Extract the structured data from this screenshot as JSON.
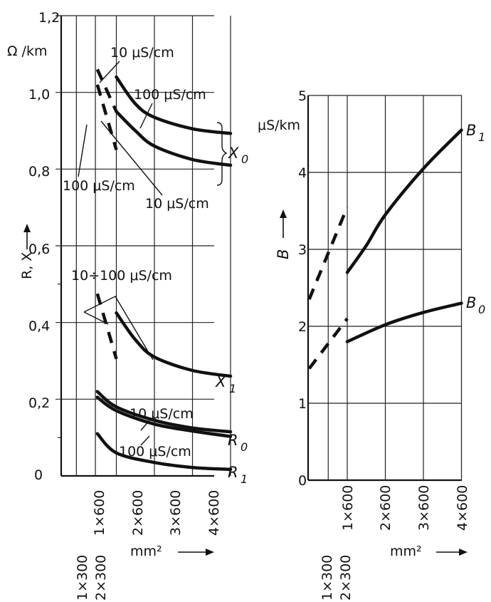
{
  "chart_data": [
    {
      "type": "line",
      "panel": "impedance",
      "ylabel": "R, X",
      "y_unit": "Ω /km",
      "xlabel": "mm²",
      "ylim": [
        0,
        1.2
      ],
      "yticks": [
        "0",
        "0,2",
        "0,4",
        "0,6",
        "0,8",
        "1,0",
        "1,2"
      ],
      "ytick_values": [
        0,
        0.2,
        0.4,
        0.6,
        0.8,
        1.0,
        1.2
      ],
      "xticks": [
        "1×600",
        "2×600",
        "3×600",
        "4×600"
      ],
      "xticks_low": [
        "1×300",
        "2×300"
      ],
      "series": [
        {
          "name": "X0 (10 μS/cm)",
          "style": "solid",
          "points": [
            [
              1.0,
              1.04
            ],
            [
              1.5,
              0.97
            ],
            [
              2.0,
              0.935
            ],
            [
              3.0,
              0.905
            ],
            [
              4.0,
              0.893
            ]
          ]
        },
        {
          "name": "X0 (10 μS/cm)",
          "style": "dashed",
          "points": [
            [
              0.5,
              1.06
            ],
            [
              1.0,
              0.95
            ]
          ]
        },
        {
          "name": "X0 (100 μS/cm)",
          "style": "solid",
          "points": [
            [
              1.0,
              0.95
            ],
            [
              1.5,
              0.9
            ],
            [
              2.0,
              0.86
            ],
            [
              3.0,
              0.825
            ],
            [
              4.0,
              0.81
            ]
          ]
        },
        {
          "name": "X0 (100 μS/cm)",
          "style": "dashed",
          "points": [
            [
              0.5,
              1.02
            ],
            [
              1.0,
              0.85
            ]
          ]
        },
        {
          "name": "X1",
          "style": "solid",
          "points": [
            [
              1.0,
              0.425
            ],
            [
              1.5,
              0.355
            ],
            [
              2.0,
              0.31
            ],
            [
              3.0,
              0.275
            ],
            [
              4.0,
              0.26
            ]
          ]
        },
        {
          "name": "X1",
          "style": "dashed",
          "points": [
            [
              0.5,
              0.475
            ],
            [
              1.0,
              0.305
            ]
          ]
        },
        {
          "name": "R0 (10 μS/cm)",
          "style": "solid",
          "points": [
            [
              0.5,
              0.22
            ],
            [
              1.0,
              0.18
            ],
            [
              2.0,
              0.145
            ],
            [
              3.0,
              0.125
            ],
            [
              4.0,
              0.115
            ]
          ]
        },
        {
          "name": "R0 (100 μS/cm)",
          "style": "solid",
          "points": [
            [
              0.5,
              0.205
            ],
            [
              1.0,
              0.17
            ],
            [
              2.0,
              0.135
            ],
            [
              3.0,
              0.117
            ],
            [
              4.0,
              0.103
            ]
          ]
        },
        {
          "name": "R1",
          "style": "solid",
          "points": [
            [
              0.5,
              0.11
            ],
            [
              1.0,
              0.06
            ],
            [
              2.0,
              0.035
            ],
            [
              3.0,
              0.022
            ],
            [
              4.0,
              0.017
            ]
          ]
        }
      ],
      "curve_labels": [
        "10 μS/cm",
        "100 μS/cm",
        "100 μS/cm",
        "10 μS/cm",
        "10÷100 μS/cm",
        "10 μS/cm",
        "100 μS/cm"
      ],
      "group_labels": {
        "X0": "X",
        "X0_sub": "0",
        "X1": "X",
        "X1_sub": "1",
        "R0": "R",
        "R0_sub": "0",
        "R1": "R",
        "R1_sub": "1"
      }
    },
    {
      "type": "line",
      "panel": "susceptance",
      "ylabel": "B",
      "y_unit": "μS/km",
      "xlabel": "mm²",
      "ylim": [
        0,
        5
      ],
      "yticks": [
        "0",
        "1",
        "2",
        "3",
        "4",
        "5"
      ],
      "ytick_values": [
        0,
        1,
        2,
        3,
        4,
        5
      ],
      "xticks": [
        "1×600",
        "2×600",
        "3×600",
        "4×600"
      ],
      "xticks_low": [
        "1×300",
        "2×300"
      ],
      "series": [
        {
          "name": "B1",
          "style": "solid",
          "points": [
            [
              1.0,
              2.7
            ],
            [
              1.5,
              3.05
            ],
            [
              2.0,
              3.45
            ],
            [
              3.0,
              4.05
            ],
            [
              4.0,
              4.55
            ]
          ]
        },
        {
          "name": "B1",
          "style": "dashed",
          "points": [
            [
              0.0,
              2.35
            ],
            [
              1.0,
              3.55
            ]
          ]
        },
        {
          "name": "B0",
          "style": "solid",
          "points": [
            [
              1.0,
              1.8
            ],
            [
              2.0,
              2.02
            ],
            [
              3.0,
              2.18
            ],
            [
              4.0,
              2.3
            ]
          ]
        },
        {
          "name": "B0",
          "style": "dashed",
          "points": [
            [
              0.0,
              1.45
            ],
            [
              1.0,
              2.1
            ]
          ]
        }
      ],
      "group_labels": {
        "B1": "B",
        "B1_sub": "1",
        "B0": "B",
        "B0_sub": "0"
      }
    }
  ]
}
